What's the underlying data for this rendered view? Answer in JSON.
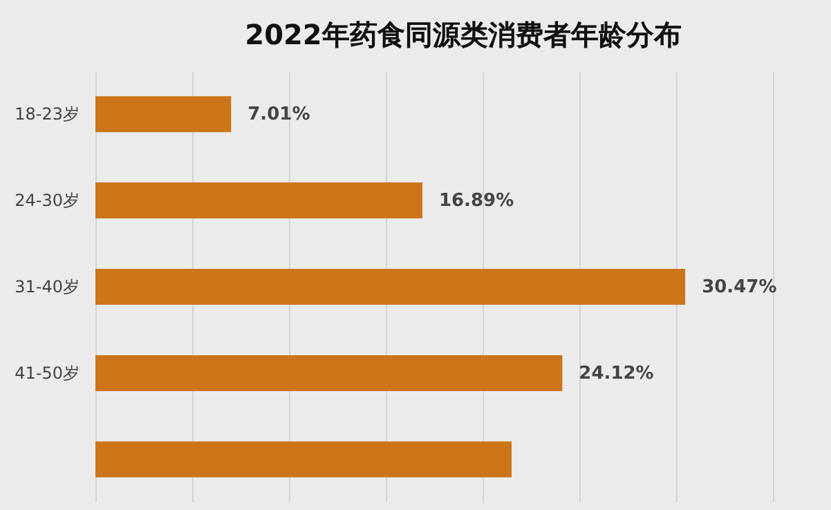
{
  "chart_data": {
    "type": "bar",
    "orientation": "horizontal",
    "title": "2022年药食同源类消费者年龄分布",
    "categories": [
      "18-23岁",
      "24-30岁",
      "31-40岁",
      "41-50岁",
      null
    ],
    "values": [
      7.01,
      16.89,
      30.47,
      24.12,
      21.5
    ],
    "value_labels": [
      "7.01%",
      "16.89%",
      "30.47%",
      "24.12%",
      null
    ],
    "color": "#cc7418",
    "xlim": [
      0,
      38
    ],
    "xticks": [
      {
        "value": 0,
        "label": null
      },
      {
        "value": 5,
        "label": null
      },
      {
        "value": 10,
        "label": null
      },
      {
        "value": 15,
        "label": null
      },
      {
        "value": 20,
        "label": null
      },
      {
        "value": 25,
        "label": null
      },
      {
        "value": 30,
        "label": null
      },
      {
        "value": 35,
        "label": null
      }
    ],
    "grid": "x",
    "tick_labels": "y"
  }
}
